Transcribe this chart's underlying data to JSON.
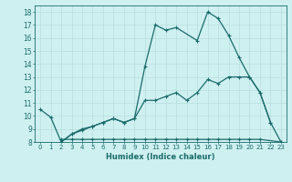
{
  "xlabel": "Humidex (Indice chaleur)",
  "xlim": [
    -0.5,
    23.5
  ],
  "ylim": [
    8,
    18.5
  ],
  "xticks": [
    0,
    1,
    2,
    3,
    4,
    5,
    6,
    7,
    8,
    9,
    10,
    11,
    12,
    13,
    14,
    15,
    16,
    17,
    18,
    19,
    20,
    21,
    22,
    23
  ],
  "yticks": [
    8,
    9,
    10,
    11,
    12,
    13,
    14,
    15,
    16,
    17,
    18
  ],
  "bg_color": "#cff0f0",
  "line_color": "#1a6b6b",
  "grid_color": "#b8dede",
  "line1_x": [
    0,
    1,
    2,
    3,
    4,
    5,
    6,
    7,
    8,
    9,
    10,
    11,
    12,
    13,
    14,
    15,
    16,
    17,
    18,
    19,
    20,
    21,
    22
  ],
  "line1_y": [
    10.5,
    9.9,
    8.0,
    8.6,
    8.9,
    9.2,
    9.5,
    9.8,
    9.5,
    9.8,
    11.2,
    11.2,
    11.5,
    11.8,
    11.2,
    11.8,
    12.8,
    12.5,
    13.0,
    13.0,
    13.0,
    11.8,
    9.5
  ],
  "line2_x": [
    2,
    3,
    4,
    5,
    6,
    7,
    8,
    9,
    10,
    11,
    12,
    13,
    15,
    16,
    17,
    18,
    19,
    20,
    21,
    22,
    23
  ],
  "line2_y": [
    8.0,
    8.6,
    9.0,
    9.2,
    9.5,
    9.8,
    9.5,
    9.8,
    13.8,
    17.0,
    16.6,
    16.8,
    15.8,
    18.0,
    17.5,
    16.2,
    14.5,
    13.0,
    11.8,
    9.5,
    8.0
  ],
  "line3_x": [
    2,
    3,
    4,
    5,
    6,
    7,
    8,
    9,
    10,
    11,
    12,
    13,
    14,
    15,
    16,
    17,
    18,
    19,
    20,
    21,
    23
  ],
  "line3_y": [
    8.2,
    8.2,
    8.2,
    8.2,
    8.2,
    8.2,
    8.2,
    8.2,
    8.2,
    8.2,
    8.2,
    8.2,
    8.2,
    8.2,
    8.2,
    8.2,
    8.2,
    8.2,
    8.2,
    8.2,
    8.0
  ],
  "marker_size": 3.5,
  "line_width": 0.9
}
